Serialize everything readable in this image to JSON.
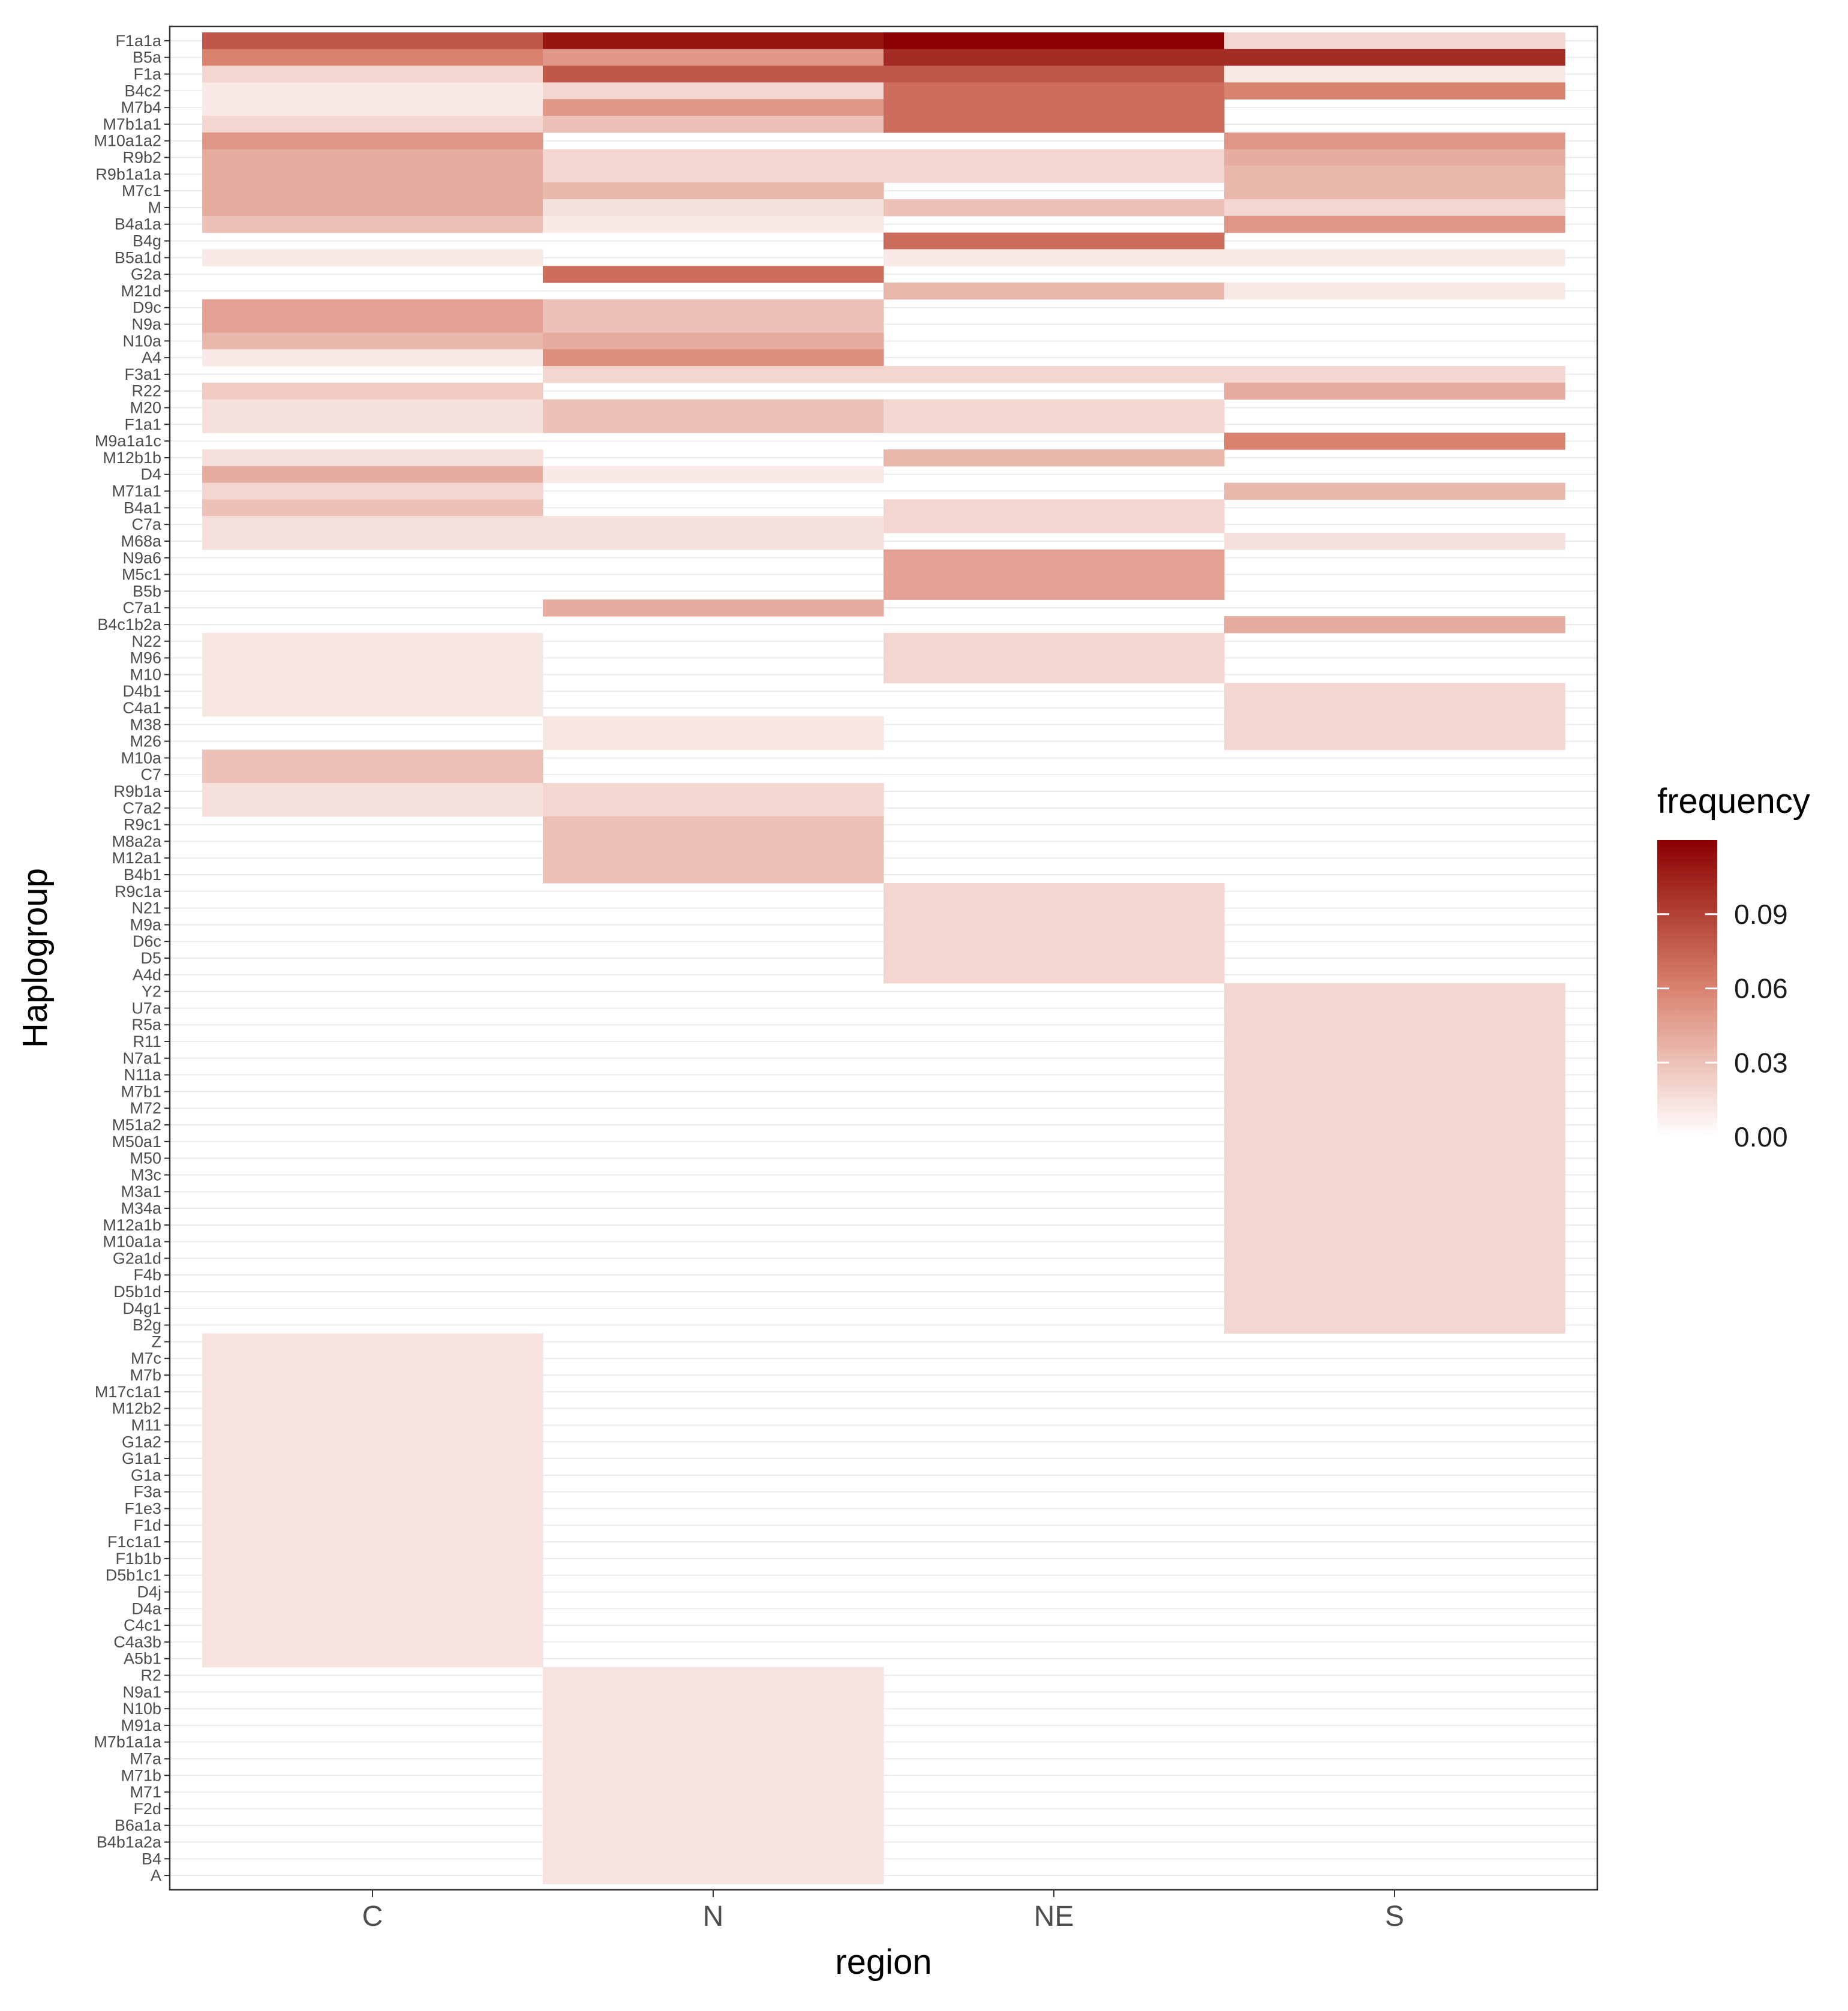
{
  "chart_data": {
    "type": "heatmap",
    "title": "",
    "xlabel": "region",
    "ylabel": "Haplogroup",
    "x_categories": [
      "C",
      "N",
      "NE",
      "S"
    ],
    "y_categories": [
      "F1a1a",
      "B5a",
      "F1a",
      "B4c2",
      "M7b4",
      "M7b1a1",
      "M10a1a2",
      "R9b2",
      "R9b1a1a",
      "M7c1",
      "M",
      "B4a1a",
      "B4g",
      "B5a1d",
      "G2a",
      "M21d",
      "D9c",
      "N9a",
      "N10a",
      "A4",
      "F3a1",
      "R22",
      "M20",
      "F1a1",
      "M9a1a1c",
      "M12b1b",
      "D4",
      "M71a1",
      "B4a1",
      "C7a",
      "M68a",
      "N9a6",
      "M5c1",
      "B5b",
      "C7a1",
      "B4c1b2a",
      "N22",
      "M96",
      "M10",
      "D4b1",
      "C4a1",
      "M38",
      "M26",
      "M10a",
      "C7",
      "R9b1a",
      "C7a2",
      "R9c1",
      "M8a2a",
      "M12a1",
      "B4b1",
      "R9c1a",
      "N21",
      "M9a",
      "D6c",
      "D5",
      "A4d",
      "Y2",
      "U7a",
      "R5a",
      "R11",
      "N7a1",
      "N11a",
      "M7b1",
      "M72",
      "M51a2",
      "M50a1",
      "M50",
      "M3c",
      "M3a1",
      "M34a",
      "M12a1b",
      "M10a1a",
      "G2a1d",
      "F4b",
      "D5b1d",
      "D4g1",
      "B2g",
      "Z",
      "M7c",
      "M7b",
      "M17c1a1",
      "M12b2",
      "M11",
      "G1a2",
      "G1a1",
      "G1a",
      "F3a",
      "F1e3",
      "F1d",
      "F1c1a1",
      "F1b1b",
      "D5b1c1",
      "D4j",
      "D4a",
      "C4c1",
      "C4a3b",
      "A5b1",
      "R2",
      "N9a1",
      "N10b",
      "M91a",
      "M7b1a1a",
      "M7a",
      "M71b",
      "M71",
      "F2d",
      "B6a1a",
      "B4b1a2a",
      "B4",
      "A"
    ],
    "values": [
      [
        0.08,
        0.11,
        0.12,
        0.02
      ],
      [
        0.06,
        0.05,
        0.1,
        0.1
      ],
      [
        0.02,
        0.08,
        0.08,
        0.01
      ],
      [
        0.01,
        0.02,
        0.07,
        0.06
      ],
      [
        0.01,
        0.05,
        0.07,
        0.0
      ],
      [
        0.02,
        0.03,
        0.07,
        0.0
      ],
      [
        0.05,
        0.0,
        0.0,
        0.05
      ],
      [
        0.04,
        0.02,
        0.02,
        0.04
      ],
      [
        0.04,
        0.02,
        0.02,
        0.035
      ],
      [
        0.04,
        0.035,
        0.0,
        0.035
      ],
      [
        0.04,
        0.015,
        0.03,
        0.02
      ],
      [
        0.03,
        0.01,
        0.0,
        0.05
      ],
      [
        0.0,
        0.0,
        0.07,
        0.0
      ],
      [
        0.01,
        0.0,
        0.01,
        0.01
      ],
      [
        0.0,
        0.07,
        0.0,
        0.0
      ],
      [
        0.0,
        0.0,
        0.035,
        0.01
      ],
      [
        0.045,
        0.03,
        0.0,
        0.0
      ],
      [
        0.045,
        0.03,
        0.0,
        0.0
      ],
      [
        0.035,
        0.04,
        0.0,
        0.0
      ],
      [
        0.01,
        0.055,
        0.0,
        0.0
      ],
      [
        0.0,
        0.02,
        0.02,
        0.02
      ],
      [
        0.025,
        0.0,
        0.0,
        0.04
      ],
      [
        0.015,
        0.03,
        0.02,
        0.0
      ],
      [
        0.015,
        0.03,
        0.02,
        0.0
      ],
      [
        0.0,
        0.0,
        0.0,
        0.06
      ],
      [
        0.015,
        0.0,
        0.035,
        0.0
      ],
      [
        0.04,
        0.01,
        0.0,
        0.0
      ],
      [
        0.02,
        0.0,
        0.0,
        0.035
      ],
      [
        0.03,
        0.0,
        0.02,
        0.0
      ],
      [
        0.015,
        0.015,
        0.02,
        0.0
      ],
      [
        0.015,
        0.015,
        0.0,
        0.015
      ],
      [
        0.0,
        0.0,
        0.045,
        0.0
      ],
      [
        0.0,
        0.0,
        0.045,
        0.0
      ],
      [
        0.0,
        0.0,
        0.045,
        0.0
      ],
      [
        0.0,
        0.04,
        0.0,
        0.0
      ],
      [
        0.0,
        0.0,
        0.0,
        0.04
      ],
      [
        0.012,
        0.0,
        0.02,
        0.0
      ],
      [
        0.012,
        0.0,
        0.02,
        0.0
      ],
      [
        0.012,
        0.0,
        0.02,
        0.0
      ],
      [
        0.012,
        0.0,
        0.0,
        0.02
      ],
      [
        0.012,
        0.0,
        0.0,
        0.02
      ],
      [
        0.0,
        0.012,
        0.0,
        0.02
      ],
      [
        0.0,
        0.012,
        0.0,
        0.02
      ],
      [
        0.03,
        0.0,
        0.0,
        0.0
      ],
      [
        0.03,
        0.0,
        0.0,
        0.0
      ],
      [
        0.015,
        0.02,
        0.0,
        0.0
      ],
      [
        0.015,
        0.02,
        0.0,
        0.0
      ],
      [
        0.0,
        0.03,
        0.0,
        0.0
      ],
      [
        0.0,
        0.03,
        0.0,
        0.0
      ],
      [
        0.0,
        0.03,
        0.0,
        0.0
      ],
      [
        0.0,
        0.03,
        0.0,
        0.0
      ],
      [
        0.0,
        0.0,
        0.02,
        0.0
      ],
      [
        0.0,
        0.0,
        0.02,
        0.0
      ],
      [
        0.0,
        0.0,
        0.02,
        0.0
      ],
      [
        0.0,
        0.0,
        0.02,
        0.0
      ],
      [
        0.0,
        0.0,
        0.02,
        0.0
      ],
      [
        0.0,
        0.0,
        0.02,
        0.0
      ],
      [
        0.0,
        0.0,
        0.0,
        0.02
      ],
      [
        0.0,
        0.0,
        0.0,
        0.02
      ],
      [
        0.0,
        0.0,
        0.0,
        0.02
      ],
      [
        0.0,
        0.0,
        0.0,
        0.02
      ],
      [
        0.0,
        0.0,
        0.0,
        0.02
      ],
      [
        0.0,
        0.0,
        0.0,
        0.02
      ],
      [
        0.0,
        0.0,
        0.0,
        0.02
      ],
      [
        0.0,
        0.0,
        0.0,
        0.02
      ],
      [
        0.0,
        0.0,
        0.0,
        0.02
      ],
      [
        0.0,
        0.0,
        0.0,
        0.02
      ],
      [
        0.0,
        0.0,
        0.0,
        0.02
      ],
      [
        0.0,
        0.0,
        0.0,
        0.02
      ],
      [
        0.0,
        0.0,
        0.0,
        0.02
      ],
      [
        0.0,
        0.0,
        0.0,
        0.02
      ],
      [
        0.0,
        0.0,
        0.0,
        0.02
      ],
      [
        0.0,
        0.0,
        0.0,
        0.02
      ],
      [
        0.0,
        0.0,
        0.0,
        0.02
      ],
      [
        0.0,
        0.0,
        0.0,
        0.02
      ],
      [
        0.0,
        0.0,
        0.0,
        0.02
      ],
      [
        0.0,
        0.0,
        0.0,
        0.02
      ],
      [
        0.0,
        0.0,
        0.0,
        0.02
      ],
      [
        0.013,
        0.0,
        0.0,
        0.0
      ],
      [
        0.013,
        0.0,
        0.0,
        0.0
      ],
      [
        0.013,
        0.0,
        0.0,
        0.0
      ],
      [
        0.013,
        0.0,
        0.0,
        0.0
      ],
      [
        0.013,
        0.0,
        0.0,
        0.0
      ],
      [
        0.013,
        0.0,
        0.0,
        0.0
      ],
      [
        0.013,
        0.0,
        0.0,
        0.0
      ],
      [
        0.013,
        0.0,
        0.0,
        0.0
      ],
      [
        0.013,
        0.0,
        0.0,
        0.0
      ],
      [
        0.013,
        0.0,
        0.0,
        0.0
      ],
      [
        0.013,
        0.0,
        0.0,
        0.0
      ],
      [
        0.013,
        0.0,
        0.0,
        0.0
      ],
      [
        0.013,
        0.0,
        0.0,
        0.0
      ],
      [
        0.013,
        0.0,
        0.0,
        0.0
      ],
      [
        0.013,
        0.0,
        0.0,
        0.0
      ],
      [
        0.013,
        0.0,
        0.0,
        0.0
      ],
      [
        0.013,
        0.0,
        0.0,
        0.0
      ],
      [
        0.013,
        0.0,
        0.0,
        0.0
      ],
      [
        0.013,
        0.0,
        0.0,
        0.0
      ],
      [
        0.013,
        0.0,
        0.0,
        0.0
      ],
      [
        0.0,
        0.013,
        0.0,
        0.0
      ],
      [
        0.0,
        0.013,
        0.0,
        0.0
      ],
      [
        0.0,
        0.013,
        0.0,
        0.0
      ],
      [
        0.0,
        0.013,
        0.0,
        0.0
      ],
      [
        0.0,
        0.013,
        0.0,
        0.0
      ],
      [
        0.0,
        0.013,
        0.0,
        0.0
      ],
      [
        0.0,
        0.013,
        0.0,
        0.0
      ],
      [
        0.0,
        0.013,
        0.0,
        0.0
      ],
      [
        0.0,
        0.013,
        0.0,
        0.0
      ],
      [
        0.0,
        0.013,
        0.0,
        0.0
      ],
      [
        0.0,
        0.013,
        0.0,
        0.0
      ],
      [
        0.0,
        0.013,
        0.0,
        0.0
      ],
      [
        0.0,
        0.013,
        0.0,
        0.0
      ]
    ],
    "legend": {
      "title": "frequency",
      "ticks": [
        0.0,
        0.03,
        0.06,
        0.09
      ],
      "tick_labels": [
        "0.00",
        "0.03",
        "0.06",
        "0.09"
      ],
      "range": [
        0,
        0.12
      ],
      "low_color": "#ffffff",
      "mid_color": "#d9836f",
      "high_color": "#8b0000",
      "placement": "right"
    },
    "grid": true
  }
}
